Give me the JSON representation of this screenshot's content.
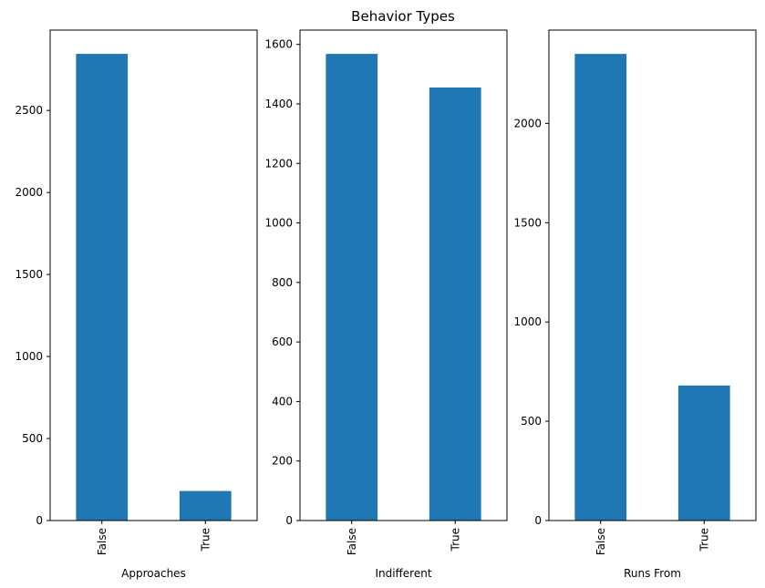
{
  "figure": {
    "suptitle": "Behavior Types"
  },
  "chart_data": [
    {
      "type": "bar",
      "categories": [
        "False",
        "True"
      ],
      "values": [
        2845,
        180
      ],
      "xlabel": "Approaches",
      "ylabel": "",
      "ylim": [
        0,
        2990
      ],
      "yticks": [
        0,
        500,
        1000,
        1500,
        2000,
        2500
      ],
      "color": "#1f77b4",
      "grid": false
    },
    {
      "type": "bar",
      "categories": [
        "False",
        "True"
      ],
      "values": [
        1568,
        1455
      ],
      "xlabel": "Indifferent",
      "ylabel": "",
      "ylim": [
        0,
        1648
      ],
      "yticks": [
        0,
        200,
        400,
        600,
        800,
        1000,
        1200,
        1400,
        1600
      ],
      "color": "#1f77b4",
      "grid": false
    },
    {
      "type": "bar",
      "categories": [
        "False",
        "True"
      ],
      "values": [
        2350,
        680
      ],
      "xlabel": "Runs From",
      "ylabel": "",
      "ylim": [
        0,
        2470
      ],
      "yticks": [
        0,
        500,
        1000,
        1500,
        2000
      ],
      "color": "#1f77b4",
      "grid": false
    }
  ]
}
